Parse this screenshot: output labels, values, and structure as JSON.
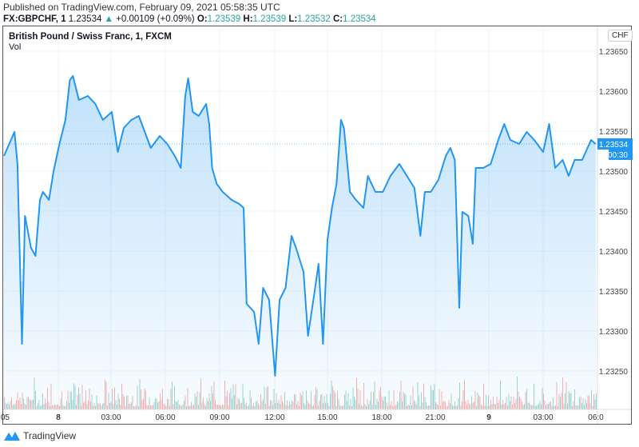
{
  "header": {
    "published": "Published on TradingView.com, February 09, 2021 05:58:35 UTC",
    "symbol": "FX:GBPCHF, 1",
    "last": "1.23534",
    "change": "+0.00109 (+0.09%)",
    "o_label": "O:",
    "o": "1.23539",
    "h_label": "H:",
    "h": "1.23539",
    "l_label": "L:",
    "l": "1.23532",
    "c_label": "C:",
    "c": "1.23534"
  },
  "legend": {
    "title": "British Pound / Swiss Franc, 1, FXCM",
    "vol": "Vol"
  },
  "currency_button": "CHF",
  "price_label": "1.23534",
  "countdown": "00:30",
  "brand": "TradingView",
  "colors": {
    "line": "#2196f3",
    "up": "#26a69a",
    "down": "#ef5350"
  },
  "chart_data": {
    "type": "area",
    "series": [
      {
        "values": [
          [
            "2021-02-07T21:00",
            1.23519
          ],
          [
            "2021-02-07T21:35",
            1.23549
          ],
          [
            "2021-02-07T21:45",
            1.23509
          ],
          [
            "2021-02-07T22:00",
            1.23284
          ],
          [
            "2021-02-07T22:10",
            1.23444
          ],
          [
            "2021-02-07T22:30",
            1.23404
          ],
          [
            "2021-02-07T22:45",
            1.23394
          ],
          [
            "2021-02-07T23:00",
            1.23464
          ],
          [
            "2021-02-07T23:10",
            1.23474
          ],
          [
            "2021-02-07T23:30",
            1.23464
          ],
          [
            "2021-02-07T23:45",
            1.23499
          ],
          [
            "2021-02-08T00:05",
            1.23534
          ],
          [
            "2021-02-08T00:25",
            1.23564
          ],
          [
            "2021-02-08T00:40",
            1.23614
          ],
          [
            "2021-02-08T00:50",
            1.23619
          ],
          [
            "2021-02-08T01:10",
            1.23589
          ],
          [
            "2021-02-08T01:40",
            1.23594
          ],
          [
            "2021-02-08T02:05",
            1.23584
          ],
          [
            "2021-02-08T02:30",
            1.23564
          ],
          [
            "2021-02-08T03:00",
            1.23574
          ],
          [
            "2021-02-08T03:20",
            1.23524
          ],
          [
            "2021-02-08T03:40",
            1.23554
          ],
          [
            "2021-02-08T04:05",
            1.23564
          ],
          [
            "2021-02-08T04:30",
            1.23569
          ],
          [
            "2021-02-08T05:00",
            1.23539
          ],
          [
            "2021-02-08T05:10",
            1.23529
          ],
          [
            "2021-02-08T05:40",
            1.23544
          ],
          [
            "2021-02-08T06:05",
            1.23534
          ],
          [
            "2021-02-08T06:30",
            1.23519
          ],
          [
            "2021-02-08T06:50",
            1.23504
          ],
          [
            "2021-02-08T07:05",
            1.23594
          ],
          [
            "2021-02-08T07:15",
            1.23616
          ],
          [
            "2021-02-08T07:30",
            1.23574
          ],
          [
            "2021-02-08T07:50",
            1.23569
          ],
          [
            "2021-02-08T08:15",
            1.23584
          ],
          [
            "2021-02-08T08:25",
            1.23559
          ],
          [
            "2021-02-08T08:35",
            1.23504
          ],
          [
            "2021-02-08T08:50",
            1.23484
          ],
          [
            "2021-02-08T09:10",
            1.23474
          ],
          [
            "2021-02-08T09:40",
            1.23464
          ],
          [
            "2021-02-08T10:05",
            1.23459
          ],
          [
            "2021-02-08T10:20",
            1.23454
          ],
          [
            "2021-02-08T10:30",
            1.23334
          ],
          [
            "2021-02-08T10:55",
            1.23324
          ],
          [
            "2021-02-08T11:10",
            1.23284
          ],
          [
            "2021-02-08T11:25",
            1.23354
          ],
          [
            "2021-02-08T11:45",
            1.23339
          ],
          [
            "2021-02-08T12:05",
            1.23244
          ],
          [
            "2021-02-08T12:20",
            1.23339
          ],
          [
            "2021-02-08T12:40",
            1.23354
          ],
          [
            "2021-02-08T13:00",
            1.23419
          ],
          [
            "2021-02-08T13:15",
            1.23404
          ],
          [
            "2021-02-08T13:40",
            1.23374
          ],
          [
            "2021-02-08T13:55",
            1.23294
          ],
          [
            "2021-02-08T14:15",
            1.23344
          ],
          [
            "2021-02-08T14:30",
            1.23384
          ],
          [
            "2021-02-08T14:45",
            1.23284
          ],
          [
            "2021-02-08T15:00",
            1.23414
          ],
          [
            "2021-02-08T15:15",
            1.23454
          ],
          [
            "2021-02-08T15:30",
            1.23484
          ],
          [
            "2021-02-08T15:45",
            1.23564
          ],
          [
            "2021-02-08T15:55",
            1.23554
          ],
          [
            "2021-02-08T16:15",
            1.23474
          ],
          [
            "2021-02-08T16:35",
            1.23464
          ],
          [
            "2021-02-08T17:00",
            1.23454
          ],
          [
            "2021-02-08T17:15",
            1.23494
          ],
          [
            "2021-02-08T17:40",
            1.23474
          ],
          [
            "2021-02-08T18:05",
            1.23474
          ],
          [
            "2021-02-08T18:30",
            1.23494
          ],
          [
            "2021-02-08T19:00",
            1.23509
          ],
          [
            "2021-02-08T19:25",
            1.23494
          ],
          [
            "2021-02-08T19:50",
            1.23479
          ],
          [
            "2021-02-08T20:10",
            1.23419
          ],
          [
            "2021-02-08T20:25",
            1.23474
          ],
          [
            "2021-02-08T20:45",
            1.23474
          ],
          [
            "2021-02-08T21:10",
            1.23489
          ],
          [
            "2021-02-08T21:35",
            1.23519
          ],
          [
            "2021-02-08T21:50",
            1.23529
          ],
          [
            "2021-02-08T22:05",
            1.23514
          ],
          [
            "2021-02-08T22:20",
            1.23329
          ],
          [
            "2021-02-08T22:30",
            1.23449
          ],
          [
            "2021-02-08T22:50",
            1.23444
          ],
          [
            "2021-02-08T23:05",
            1.23409
          ],
          [
            "2021-02-08T23:15",
            1.23504
          ],
          [
            "2021-02-08T23:40",
            1.23504
          ],
          [
            "2021-02-09T00:05",
            1.23509
          ],
          [
            "2021-02-09T00:30",
            1.23539
          ],
          [
            "2021-02-09T00:50",
            1.23559
          ],
          [
            "2021-02-09T01:10",
            1.23539
          ],
          [
            "2021-02-09T01:40",
            1.23534
          ],
          [
            "2021-02-09T02:05",
            1.23549
          ],
          [
            "2021-02-09T02:30",
            1.23539
          ],
          [
            "2021-02-09T03:00",
            1.23524
          ],
          [
            "2021-02-09T03:20",
            1.23559
          ],
          [
            "2021-02-09T03:40",
            1.23504
          ],
          [
            "2021-02-09T04:05",
            1.23514
          ],
          [
            "2021-02-09T04:25",
            1.23494
          ],
          [
            "2021-02-09T04:45",
            1.23514
          ],
          [
            "2021-02-09T05:10",
            1.23514
          ],
          [
            "2021-02-09T05:40",
            1.23539
          ],
          [
            "2021-02-09T05:55",
            1.23534
          ]
        ]
      }
    ],
    "x_ticks": [
      ":05",
      "8",
      "03:00",
      "06:00",
      "09:00",
      "12:00",
      "15:00",
      "18:00",
      "21:00",
      "9",
      "03:00",
      "06:0"
    ],
    "y_ticks": [
      "1.23650",
      "1.23600",
      "1.23550",
      "1.23500",
      "1.23450",
      "1.23400",
      "1.23350",
      "1.23300",
      "1.23250"
    ],
    "ylim": [
      1.23215,
      1.2368
    ],
    "grid": true
  }
}
